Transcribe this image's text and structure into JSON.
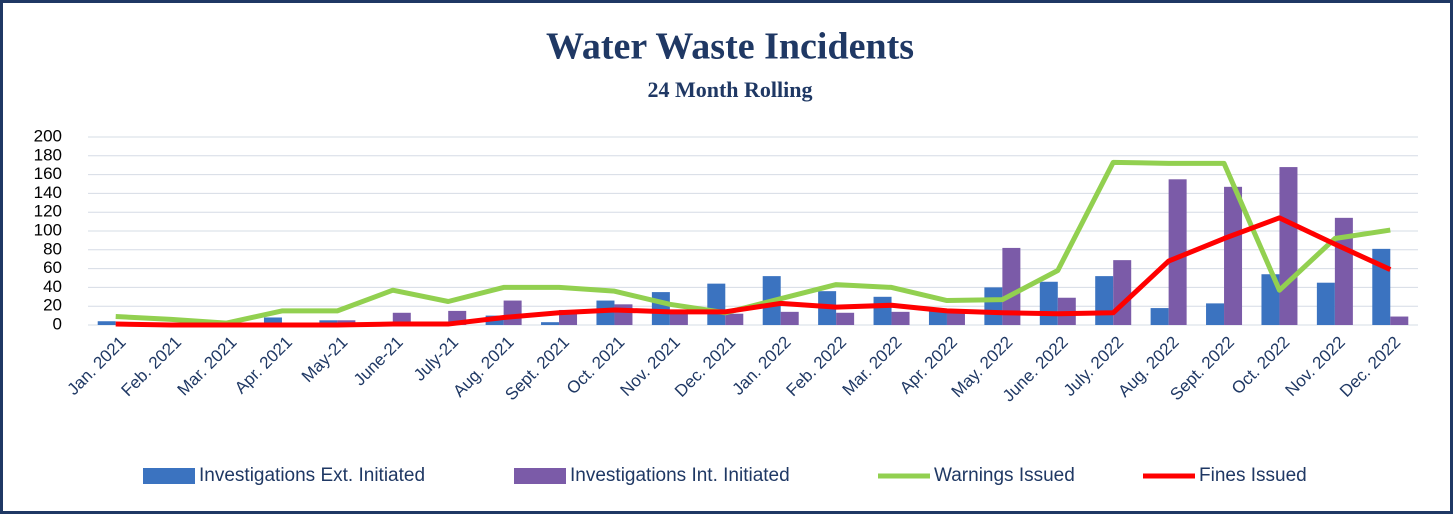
{
  "chart_data": {
    "type": "bar",
    "title": "Water Waste Incidents",
    "subtitle": "24 Month Rolling",
    "categories": [
      "Jan. 2021",
      "Feb. 2021",
      "Mar. 2021",
      "Apr. 2021",
      "May-21",
      "June-21",
      "July-21",
      "Aug. 2021",
      "Sept. 2021",
      "Oct. 2021",
      "Nov. 2021",
      "Dec. 2021",
      "Jan. 2022",
      "Feb. 2022",
      "Mar. 2022",
      "Apr. 2022",
      "May. 2022",
      "June. 2022",
      "July. 2022",
      "Aug. 2022",
      "Sept. 2022",
      "Oct. 2022",
      "Nov. 2022",
      "Dec. 2022"
    ],
    "series": [
      {
        "name": "Investigations Ext. Initiated",
        "type": "bar",
        "color": "#3b73c0",
        "values": [
          4,
          0,
          0,
          8,
          5,
          1,
          2,
          10,
          3,
          26,
          35,
          44,
          52,
          36,
          30,
          15,
          40,
          46,
          52,
          18,
          23,
          54,
          45,
          81
        ]
      },
      {
        "name": "Investigations Int. Initiated",
        "type": "bar",
        "color": "#7b5ba8",
        "values": [
          1,
          0,
          0,
          2,
          5,
          13,
          15,
          26,
          16,
          22,
          12,
          12,
          14,
          13,
          14,
          14,
          82,
          29,
          69,
          155,
          147,
          168,
          114,
          9
        ]
      },
      {
        "name": "Warnings Issued",
        "type": "line",
        "color": "#92d050",
        "values": [
          9,
          6,
          2,
          15,
          15,
          37,
          25,
          40,
          40,
          36,
          22,
          13,
          28,
          43,
          40,
          26,
          27,
          58,
          173,
          172,
          172,
          37,
          92,
          101
        ]
      },
      {
        "name": "Fines Issued",
        "type": "line",
        "color": "#ff0000",
        "values": [
          1,
          0,
          0,
          0,
          0,
          1,
          1,
          8,
          13,
          16,
          14,
          14,
          23,
          19,
          21,
          15,
          13,
          12,
          13,
          68,
          92,
          114,
          86,
          59
        ]
      }
    ],
    "ylim": [
      0,
      200
    ],
    "yticks": [
      0,
      20,
      40,
      60,
      80,
      100,
      120,
      140,
      160,
      180,
      200
    ],
    "grid": true,
    "legend": "bottom"
  }
}
